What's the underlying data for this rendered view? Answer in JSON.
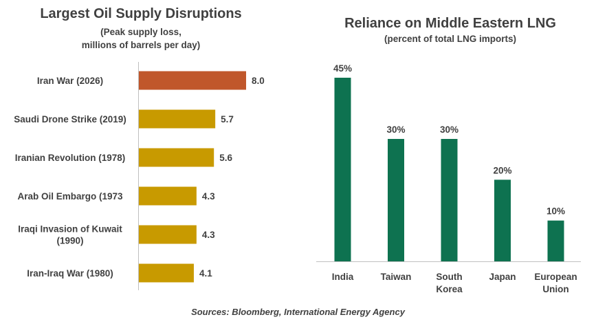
{
  "colors": {
    "highlight": "#C0572B",
    "gold": "#C89A00",
    "green": "#0E7250",
    "axis": "#BFBFBF",
    "text": "#404040"
  },
  "chart_data": [
    {
      "type": "bar",
      "orientation": "horizontal",
      "title": "Largest Oil Supply Disruptions",
      "subtitle_lines": [
        "(Peak supply loss,",
        "millions of barrels per day)"
      ],
      "categories": [
        [
          "Iran War (2026)"
        ],
        [
          "Saudi Drone Strike (2019)"
        ],
        [
          "Iranian Revolution (1978)"
        ],
        [
          "Arab Oil Embargo (1973"
        ],
        [
          "Iraqi Invasion of Kuwait",
          "(1990)"
        ],
        [
          "Iran-Iraq War (1980)"
        ]
      ],
      "values": [
        8.0,
        5.7,
        5.6,
        4.3,
        4.3,
        4.1
      ],
      "labels": [
        "8.0",
        "5.7",
        "5.6",
        "4.3",
        "4.3",
        "4.1"
      ],
      "highlight_index": 0,
      "xlim": [
        0,
        8.0
      ]
    },
    {
      "type": "bar",
      "orientation": "vertical",
      "title": "Reliance on Middle Eastern LNG",
      "subtitle": "(percent of total LNG imports)",
      "categories": [
        [
          "India"
        ],
        [
          "Taiwan"
        ],
        [
          "South",
          "Korea"
        ],
        [
          "Japan"
        ],
        [
          "European",
          "Union"
        ]
      ],
      "values": [
        45,
        30,
        30,
        20,
        10
      ],
      "labels": [
        "45%",
        "30%",
        "30%",
        "20%",
        "10%"
      ],
      "ylim": [
        0,
        45
      ]
    }
  ],
  "source": "Sources: Bloomberg, International Energy Agency"
}
